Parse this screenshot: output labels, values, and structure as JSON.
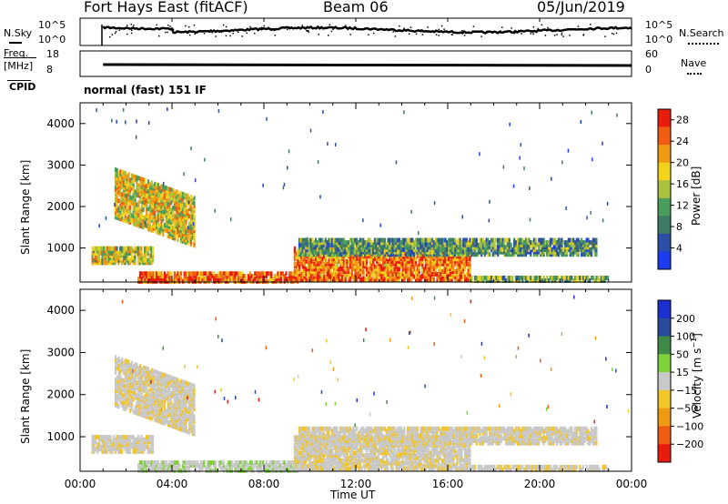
{
  "header": {
    "title": "Fort Hays East (fitACF)",
    "beam": "Beam 06",
    "date": "05/Jun/2019"
  },
  "noise_panel": {
    "left_label": "N.Sky",
    "right_label": "N.Search",
    "left_ticks": [
      "10^5",
      "10^0"
    ],
    "right_ticks": [
      "10^5",
      "10^0"
    ]
  },
  "freq_panel": {
    "left_label_1": "Freq.",
    "left_label_2": "[MHz]",
    "left_ticks": [
      "18",
      "8"
    ],
    "right_label": "Nave",
    "right_ticks": [
      "60",
      "0"
    ],
    "cpid_label": "CPID",
    "cpid_text": "normal (fast) 151 IF"
  },
  "colors": {
    "power": [
      "#1c3cf0",
      "#2d4fa5",
      "#3f7a66",
      "#4a9d5a",
      "#a9c23e",
      "#f2d21a",
      "#f09a14",
      "#ef5d12",
      "#e81c0c"
    ],
    "velocity": [
      "#e81c0c",
      "#ef5d12",
      "#f09a14",
      "#f2c62a",
      "#c9c9c9",
      "#7ed33a",
      "#3f8a46",
      "#2a4a9a",
      "#1c30d0"
    ]
  },
  "chart_data": [
    {
      "type": "heatmap",
      "name_panel": "power",
      "ylabel": "Slant Range [km]",
      "yticks": [
        1000,
        2000,
        3000,
        4000
      ],
      "ylim": [
        180,
        4500
      ],
      "xlabel": "Time UT",
      "xticks": [
        "00:00",
        "04:00",
        "08:00",
        "12:00",
        "16:00",
        "20:00",
        "00:00"
      ],
      "xlim_hours": [
        0,
        24
      ],
      "colorbar": {
        "label": "Power [dB]",
        "ticks": [
          4,
          8,
          12,
          16,
          20,
          24,
          28
        ],
        "range": [
          0,
          30
        ]
      },
      "echo_regions": [
        {
          "t": [
            0.5,
            3.2
          ],
          "r": [
            700,
            1100
          ],
          "level": 0.55
        },
        {
          "t": [
            1.5,
            5.0
          ],
          "r": [
            1300,
            2500
          ],
          "level": 0.6
        },
        {
          "t": [
            2.5,
            9.5
          ],
          "r": [
            250,
            500
          ],
          "level": 0.85
        },
        {
          "t": [
            9.3,
            17.0
          ],
          "r": [
            300,
            1100
          ],
          "level": 0.8
        },
        {
          "t": [
            9.5,
            22.5
          ],
          "r": [
            900,
            1300
          ],
          "level": 0.35
        },
        {
          "t": [
            17.0,
            23.0
          ],
          "r": [
            200,
            400
          ],
          "level": 0.4
        }
      ]
    },
    {
      "type": "heatmap",
      "name_panel": "velocity",
      "ylabel": "Slant Range [km]",
      "yticks": [
        1000,
        2000,
        3000,
        4000
      ],
      "ylim": [
        180,
        4500
      ],
      "xlabel": "Time UT",
      "xticks": [
        "00:00",
        "04:00",
        "08:00",
        "12:00",
        "16:00",
        "20:00",
        "00:00"
      ],
      "xlim_hours": [
        0,
        24
      ],
      "colorbar": {
        "label": "Velocity [m s^-1]",
        "ticks": [
          "200",
          "100",
          "50",
          "15",
          "−15",
          "−50",
          "−100",
          "−200"
        ],
        "range": [
          -250,
          250
        ]
      }
    }
  ]
}
